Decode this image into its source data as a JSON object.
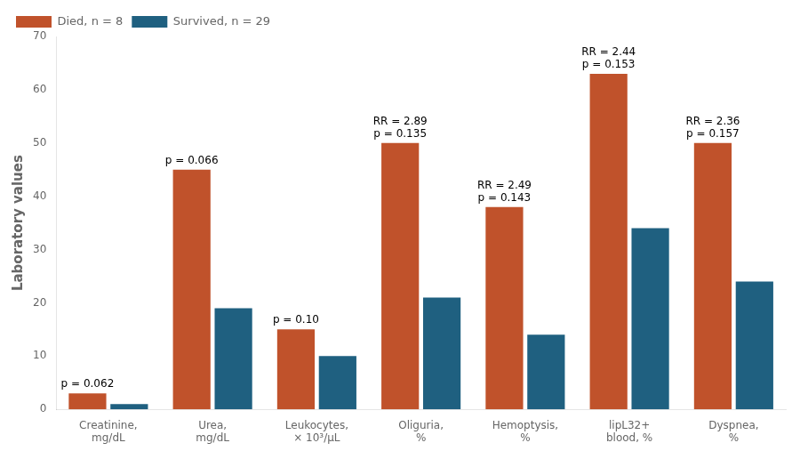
{
  "chart_data": {
    "type": "bar",
    "categories": [
      "Creatinine,\nmg/dL",
      "Urea,\nmg/dL",
      "Leukocytes,\n× 10³/μL",
      "Oliguria,\n%",
      "Hemoptysis,\n%",
      "lipL32+\nblood, %",
      "Dyspnea,\n%"
    ],
    "series": [
      {
        "name": "Died, n = 8",
        "color": "#C0522B",
        "values": [
          3,
          45,
          15,
          50,
          38,
          63,
          50
        ]
      },
      {
        "name": "Survived, n = 29",
        "color": "#1F6080",
        "values": [
          1,
          19,
          10,
          21,
          14,
          34,
          24
        ]
      }
    ],
    "ylabel": "Laboratory values",
    "ylim": [
      0,
      70
    ],
    "yticks": [
      0,
      10,
      20,
      30,
      40,
      50,
      60,
      70
    ],
    "grid": false,
    "legend": "upper left",
    "annotations": [
      {
        "text": "p = 0.062",
        "category": "Creatinine,\nmg/dL",
        "series": "Died, n = 8"
      },
      {
        "text": "p = 0.066",
        "category": "Urea,\nmg/dL",
        "series": "Died, n = 8"
      },
      {
        "text": "p = 0.10",
        "category": "Leukocytes,\n× 10³/μL",
        "series": "Died, n = 8"
      },
      {
        "text": "RR = 2.89\np = 0.135",
        "category": "Oliguria,\n%",
        "series": "Died, n = 8"
      },
      {
        "text": "RR = 2.49\np = 0.143",
        "category": "Hemoptysis,\n%",
        "series": "Died, n = 8"
      },
      {
        "text": "RR = 2.44\np = 0.153",
        "category": "lipL32+\nblood, %",
        "series": "Died, n = 8"
      },
      {
        "text": "RR = 2.36\np = 0.157",
        "category": "Dyspnea,\n%",
        "series": "Died, n = 8"
      }
    ]
  }
}
